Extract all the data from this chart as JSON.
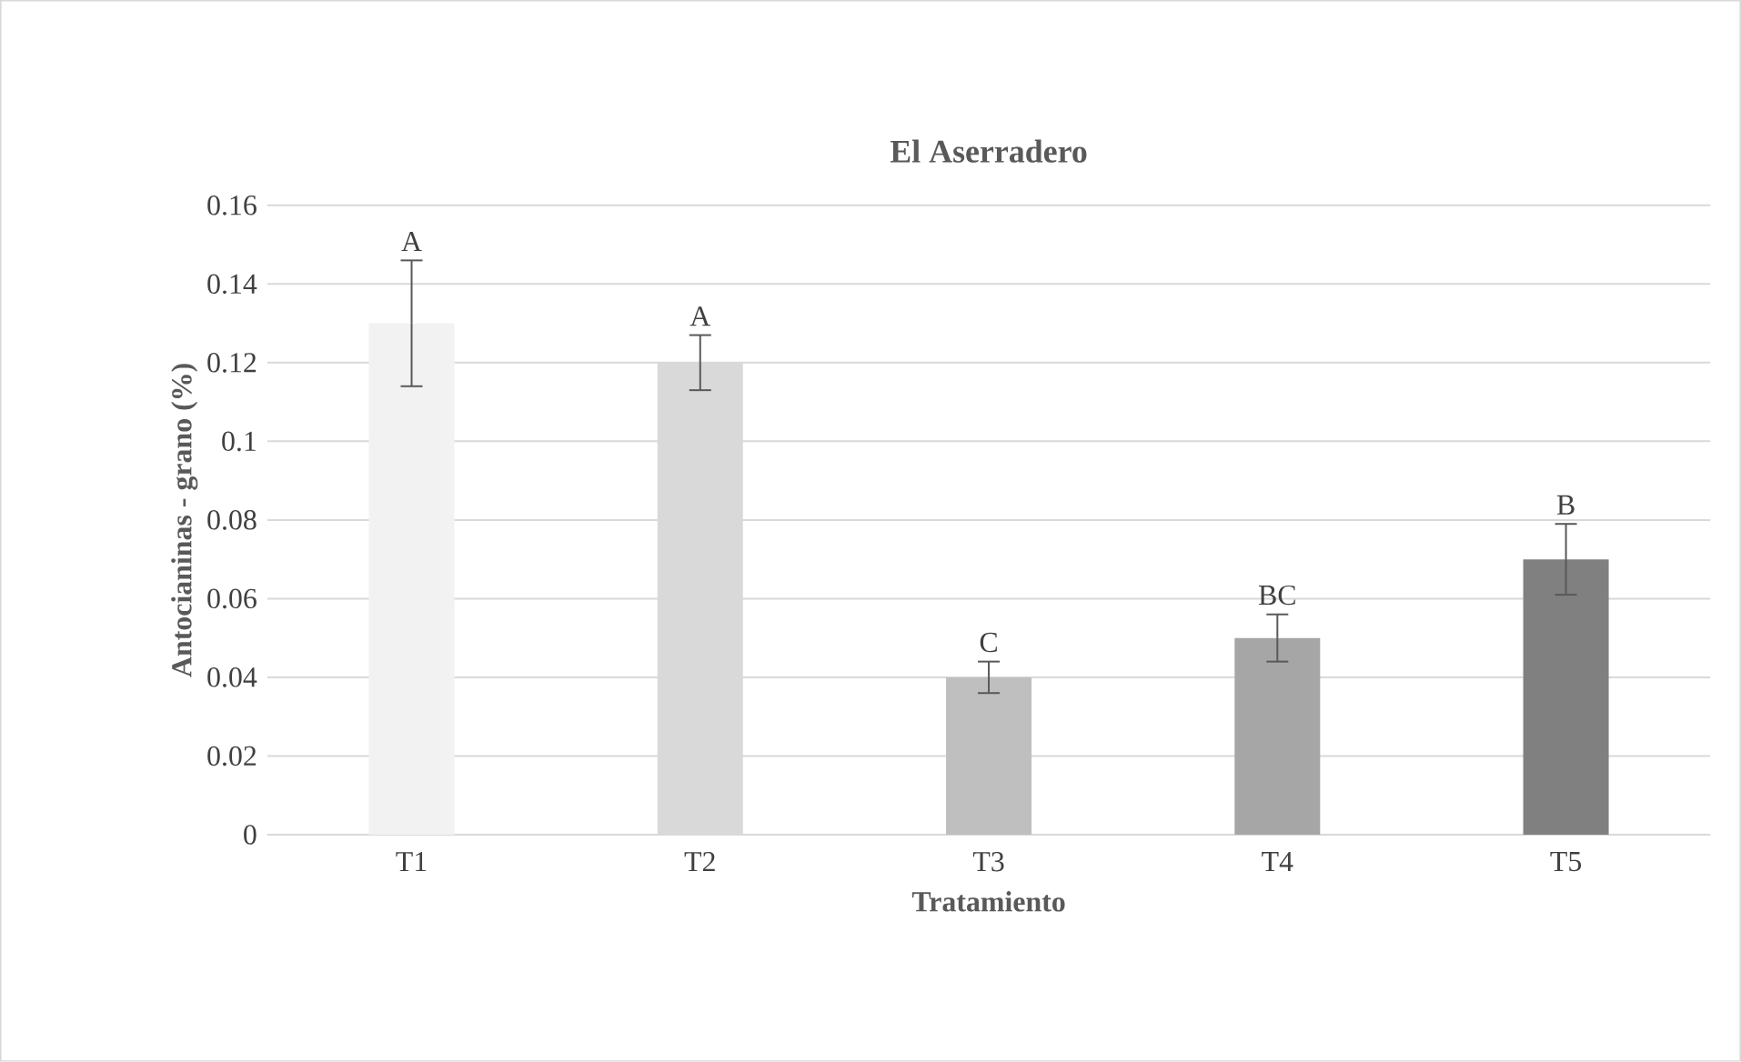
{
  "chart_data": {
    "type": "bar",
    "title": "El Aserradero",
    "xlabel": "Tratamiento",
    "ylabel": "Antocianinas - grano (%)",
    "categories": [
      "T1",
      "T2",
      "T3",
      "T4",
      "T5"
    ],
    "values": [
      0.13,
      0.12,
      0.04,
      0.05,
      0.07
    ],
    "errors": [
      0.016,
      0.007,
      0.004,
      0.006,
      0.009
    ],
    "value_labels": [
      "A",
      "A",
      "C",
      "BC",
      "B"
    ],
    "colors": [
      "#f2f2f2",
      "#d9d9d9",
      "#bfbfbf",
      "#a6a6a6",
      "#808080"
    ],
    "ylim": [
      0,
      0.16
    ],
    "yticks": [
      0,
      0.02,
      0.04,
      0.06,
      0.08,
      0.1,
      0.12,
      0.14,
      0.16
    ],
    "grid": "y"
  }
}
